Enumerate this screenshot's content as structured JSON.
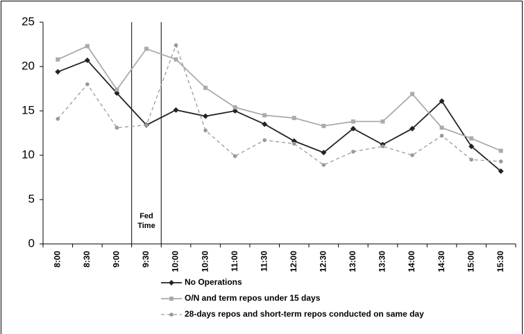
{
  "chart_data": {
    "type": "line",
    "categories": [
      "8:00",
      "8:30",
      "9:00",
      "9:30",
      "10:00",
      "10:30",
      "11:00",
      "11:30",
      "12:00",
      "12:30",
      "13:00",
      "13:30",
      "14:00",
      "14:30",
      "15:00",
      "15:30"
    ],
    "series": [
      {
        "name": "No Operations",
        "color": "#222222",
        "marker": "diamond",
        "dash": false,
        "values": [
          19.4,
          20.7,
          17.0,
          13.4,
          15.1,
          14.4,
          15.0,
          13.5,
          11.6,
          10.3,
          13.0,
          11.2,
          13.0,
          16.1,
          11.0,
          8.2
        ]
      },
      {
        "name": "O/N and term repos under 15 days",
        "color": "#aaaaaa",
        "marker": "square",
        "dash": false,
        "values": [
          20.8,
          22.3,
          17.4,
          22.0,
          20.8,
          17.6,
          15.4,
          14.5,
          14.2,
          13.3,
          13.8,
          13.8,
          16.9,
          13.1,
          11.9,
          10.5
        ]
      },
      {
        "name": "28-days repos and short-term repos conducted on same day",
        "color": "#999999",
        "marker": "circle",
        "dash": true,
        "values": [
          14.1,
          18.0,
          13.1,
          13.4,
          22.4,
          12.8,
          9.9,
          11.7,
          11.3,
          8.9,
          10.4,
          11.0,
          10.0,
          12.2,
          9.5,
          9.3
        ]
      }
    ],
    "annotation": [
      "Fed",
      "Time"
    ],
    "ylim": [
      0,
      25
    ],
    "yticks": [
      0,
      5,
      10,
      15,
      20,
      25
    ],
    "grid": false,
    "legend": "bottom"
  }
}
